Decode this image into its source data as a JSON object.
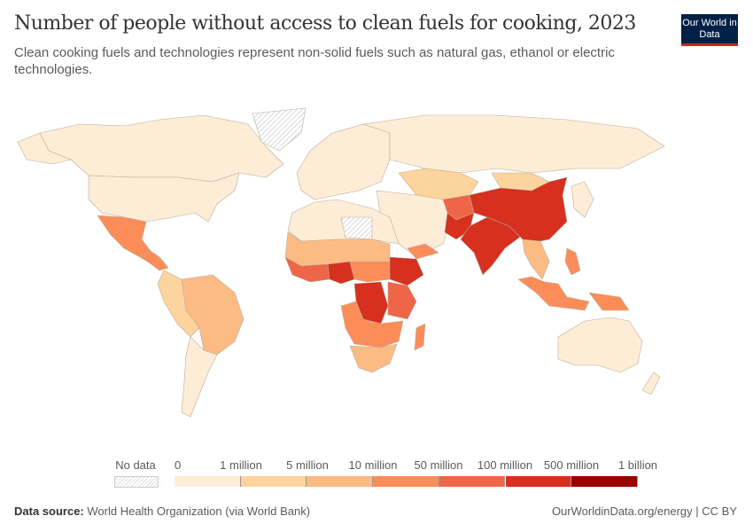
{
  "header": {
    "title": "Number of people without access to clean fuels for cooking, 2023",
    "subtitle": "Clean cooking fuels and technologies represent non-solid fuels such as natural gas, ethanol or electric technologies.",
    "logo_text": "Our World in Data"
  },
  "legend": {
    "no_data_label": "No data",
    "bins": [
      {
        "label": "0",
        "color": "#feedd6"
      },
      {
        "label": "1 million",
        "color": "#fdd49e"
      },
      {
        "label": "5 million",
        "color": "#fdbb84"
      },
      {
        "label": "10 million",
        "color": "#fc8d59"
      },
      {
        "label": "50 million",
        "color": "#ef6548"
      },
      {
        "label": "100 million",
        "color": "#d7301f"
      },
      {
        "label": "500 million",
        "color": "#990000"
      }
    ],
    "end_label": "1 billion"
  },
  "footer": {
    "source_label": "Data source:",
    "source": "World Health Organization (via World Bank)",
    "link": "OurWorldinData.org/energy | CC BY"
  },
  "colors": {
    "border": "#b0a898",
    "no_data": "#dddddd",
    "brand": "#002147",
    "brand_accent": "#ce261e"
  }
}
